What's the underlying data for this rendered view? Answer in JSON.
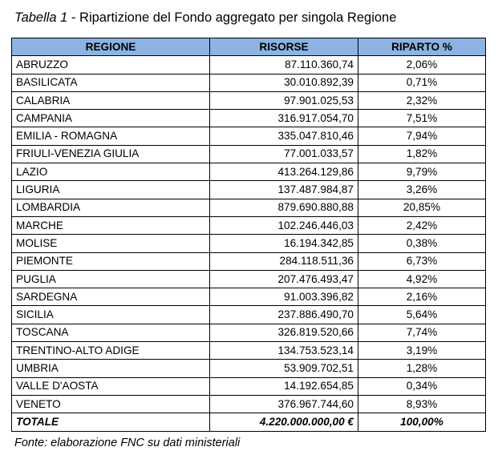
{
  "caption": {
    "label": "Tabella 1",
    "separator": " - ",
    "text": "Ripartizione del Fondo aggregato per singola Regione"
  },
  "table": {
    "headers": {
      "region": "REGIONE",
      "resources": "RISORSE",
      "share": "RIPARTO %"
    },
    "rows": [
      {
        "region": "ABRUZZO",
        "resources": "87.110.360,74",
        "share": "2,06%"
      },
      {
        "region": "BASILICATA",
        "resources": "30.010.892,39",
        "share": "0,71%"
      },
      {
        "region": "CALABRIA",
        "resources": "97.901.025,53",
        "share": "2,32%"
      },
      {
        "region": "CAMPANIA",
        "resources": "316.917.054,70",
        "share": "7,51%"
      },
      {
        "region": "EMILIA - ROMAGNA",
        "resources": "335.047.810,46",
        "share": "7,94%"
      },
      {
        "region": "FRIULI-VENEZIA GIULIA",
        "resources": "77.001.033,57",
        "share": "1,82%"
      },
      {
        "region": "LAZIO",
        "resources": "413.264.129,86",
        "share": "9,79%"
      },
      {
        "region": "LIGURIA",
        "resources": "137.487.984,87",
        "share": "3,26%"
      },
      {
        "region": "LOMBARDIA",
        "resources": "879.690.880,88",
        "share": "20,85%"
      },
      {
        "region": "MARCHE",
        "resources": "102.246.446,03",
        "share": "2,42%"
      },
      {
        "region": "MOLISE",
        "resources": "16.194.342,85",
        "share": "0,38%"
      },
      {
        "region": "PIEMONTE",
        "resources": "284.118.511,36",
        "share": "6,73%"
      },
      {
        "region": "PUGLIA",
        "resources": "207.476.493,47",
        "share": "4,92%"
      },
      {
        "region": "SARDEGNA",
        "resources": "91.003.396,82",
        "share": "2,16%"
      },
      {
        "region": "SICILIA",
        "resources": "237.886.490,70",
        "share": "5,64%"
      },
      {
        "region": "TOSCANA",
        "resources": "326.819.520,66",
        "share": "7,74%"
      },
      {
        "region": "TRENTINO-ALTO ADIGE",
        "resources": "134.753.523,14",
        "share": "3,19%"
      },
      {
        "region": "UMBRIA",
        "resources": "53.909.702,51",
        "share": "1,28%"
      },
      {
        "region": "VALLE D'AOSTA",
        "resources": "14.192.654,85",
        "share": "0,34%"
      },
      {
        "region": "VENETO",
        "resources": "376.967.744,60",
        "share": "8,93%"
      }
    ],
    "total": {
      "region": "TOTALE",
      "resources": "4.220.000.000,00 €",
      "share": "100,00%"
    }
  },
  "source": "Fonte: elaborazione FNC su dati ministeriali",
  "colors": {
    "header_background": "#8db3e2",
    "border": "#000000"
  }
}
